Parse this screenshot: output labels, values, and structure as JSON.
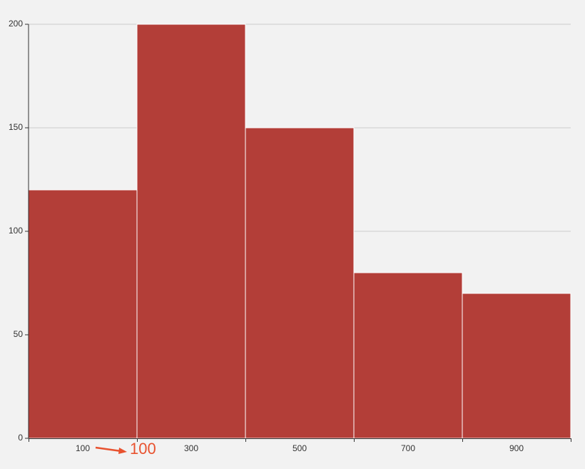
{
  "chart_data": {
    "type": "bar",
    "categories": [
      "100",
      "300",
      "500",
      "700",
      "900"
    ],
    "values": [
      120,
      200,
      150,
      80,
      70
    ],
    "color": "#b33e38",
    "ylim": [
      0,
      200
    ],
    "yticks": [
      0,
      50,
      100,
      150,
      200
    ],
    "grid": true,
    "annotation": "100",
    "annotation_color": "#e8522f"
  }
}
